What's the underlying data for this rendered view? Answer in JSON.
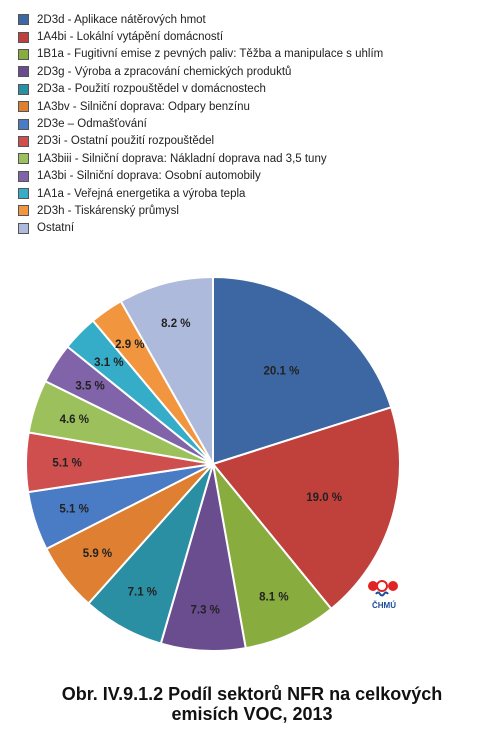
{
  "chart_data": {
    "type": "pie",
    "categories": [
      "2D3d - Aplikace nátěrových hmot",
      "1A4bi - Lokální vytápění domácností",
      "1B1a - Fugitivní emise z pevných paliv: Těžba a manipulace s uhlím",
      "2D3g - Výroba a zpracování chemických produktů",
      "2D3a - Použití rozpouštědel v domácnostech",
      "1A3bv - Silniční doprava: Odpary benzínu",
      "2D3e – Odmašťování",
      "2D3i - Ostatní použití rozpouštědel",
      "1A3biii - Silniční doprava: Nákladní doprava nad 3,5 tuny",
      "1A3bi - Silniční doprava: Osobní automobily",
      "1A1a - Veřejná energetika a výroba tepla",
      "2D3h - Tiskárenský průmysl",
      "Ostatní"
    ],
    "values": [
      20.1,
      19.0,
      8.1,
      7.3,
      7.1,
      5.9,
      5.1,
      5.1,
      4.6,
      3.5,
      3.1,
      2.9,
      8.2
    ],
    "labels": [
      "20.1 %",
      "19.0 %",
      "8.1 %",
      "7.3 %",
      "7.1 %",
      "5.9 %",
      "5.1 %",
      "5.1 %",
      "4.6 %",
      "3.5 %",
      "3.1 %",
      "2.9 %",
      "8.2 %"
    ],
    "colors": [
      "#3c67a3",
      "#c0403c",
      "#88ac3e",
      "#6a4d8e",
      "#2b8fa3",
      "#de7f32",
      "#4a7bc5",
      "#cf4e4e",
      "#9cc15c",
      "#8063a8",
      "#35adc8",
      "#f2953f",
      "#aebadc"
    ],
    "legend_position": "top-left",
    "start_angle": "12 o'clock, clockwise"
  },
  "logo": {
    "text": "ČHMÚ"
  },
  "caption": {
    "line1": "Obr. IV.9.1.2  Podíl sektorů NFR na celkových",
    "line2": "emisích VOC, 2013"
  }
}
